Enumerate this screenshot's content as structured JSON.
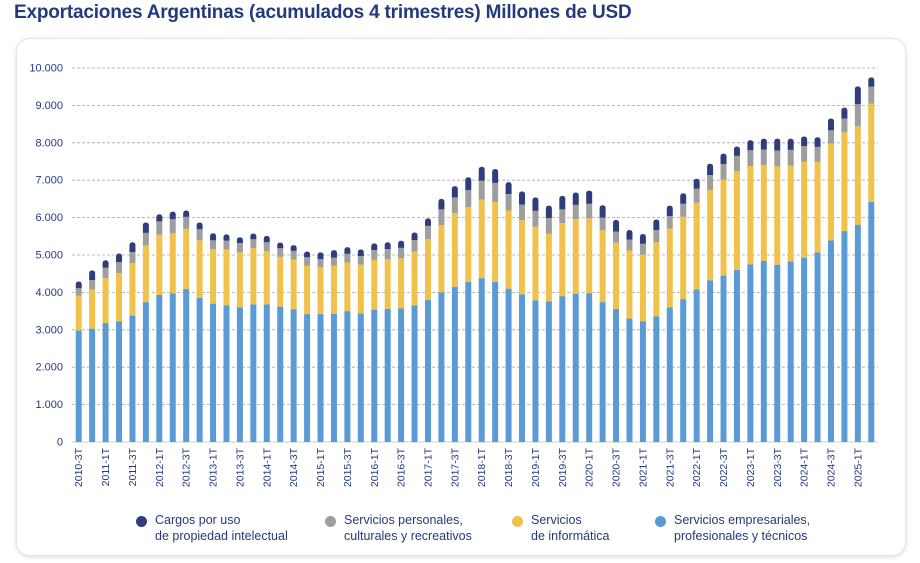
{
  "title": "Exportaciones Argentinas (acumulados 4 trimestres) Millones de USD",
  "colors": {
    "title": "#233a7d",
    "tick": "#233a7d",
    "grid": "#a6a6a6",
    "empresariales": "#5b9bd5",
    "informatica": "#f0c14b",
    "personales": "#9e9e9e",
    "cargos": "#2e3d7c"
  },
  "legend": [
    {
      "key": "cargos",
      "line1": "Cargos por uso",
      "line2": "de propiedad intelectual"
    },
    {
      "key": "personales",
      "line1": "Servicios personales,",
      "line2": "culturales y recreativos"
    },
    {
      "key": "informatica",
      "line1": "Servicios",
      "line2": "de informática"
    },
    {
      "key": "empresariales",
      "line1": "Servicios empresariales,",
      "line2": "profesionales y técnicos"
    }
  ],
  "chart_data": {
    "type": "bar",
    "stacked": true,
    "title": "Exportaciones Argentinas (acumulados 4 trimestres) Millones de USD",
    "xlabel": "",
    "ylabel": "",
    "ylim": [
      0,
      10000
    ],
    "yticks": [
      0,
      1000,
      2000,
      3000,
      4000,
      5000,
      6000,
      7000,
      8000,
      9000,
      10000
    ],
    "ytick_labels": [
      "0",
      "1.000",
      "2.000",
      "3.000",
      "4.000",
      "5.000",
      "6.000",
      "7.000",
      "8.000",
      "9.000",
      "10.000"
    ],
    "categories": [
      "2010-3T",
      "2010-4T",
      "2011-1T",
      "2011-2T",
      "2011-3T",
      "2011-4T",
      "2012-1T",
      "2012-2T",
      "2012-3T",
      "2012-4T",
      "2013-1T",
      "2013-2T",
      "2013-3T",
      "2013-4T",
      "2014-1T",
      "2014-2T",
      "2014-3T",
      "2014-4T",
      "2015-1T",
      "2015-2T",
      "2015-3T",
      "2015-4T",
      "2016-1T",
      "2016-2T",
      "2016-3T",
      "2016-4T",
      "2017-1T",
      "2017-2T",
      "2017-3T",
      "2017-4T",
      "2018-1T",
      "2018-2T",
      "2018-3T",
      "2018-4T",
      "2019-1T",
      "2019-2T",
      "2019-3T",
      "2019-4T",
      "2020-1T",
      "2020-2T",
      "2020-3T",
      "2020-4T",
      "2021-1T",
      "2021-2T",
      "2021-3T",
      "2021-4T",
      "2022-1T",
      "2022-2T",
      "2022-3T",
      "2022-4T",
      "2023-1T",
      "2023-2T",
      "2023-3T",
      "2023-4T",
      "2024-1T",
      "2024-2T",
      "2024-3T",
      "2024-4T",
      "2025-1T",
      "2025-2T"
    ],
    "tick_labels": [
      "2010-3T",
      "2011-1T",
      "2011-3T",
      "2012-1T",
      "2012-3T",
      "2013-1T",
      "2013-3T",
      "2014-1T",
      "2014-3T",
      "2015-1T",
      "2015-3T",
      "2016-1T",
      "2016-3T",
      "2017-1T",
      "2017-3T",
      "2018-1T",
      "2018-3T",
      "2019-1T",
      "2019-3T",
      "2020-1T",
      "2020-3T",
      "2021-1T",
      "2021-3T",
      "2022-1T",
      "2022-3T",
      "2023-1T",
      "2023-3T",
      "2024-1T",
      "2024-3T",
      "2025-1T"
    ],
    "series": [
      {
        "name": "Servicios empresariales, profesionales y técnicos",
        "key": "empresariales",
        "values": [
          2980,
          3030,
          3180,
          3230,
          3380,
          3740,
          3930,
          3980,
          4090,
          3850,
          3700,
          3650,
          3600,
          3680,
          3680,
          3620,
          3550,
          3420,
          3420,
          3430,
          3500,
          3440,
          3540,
          3560,
          3570,
          3650,
          3800,
          4000,
          4150,
          4280,
          4380,
          4280,
          4100,
          3950,
          3790,
          3760,
          3900,
          3960,
          3980,
          3740,
          3560,
          3300,
          3230,
          3360,
          3600,
          3820,
          4080,
          4320,
          4450,
          4600,
          4750,
          4840,
          4740,
          4830,
          4930,
          5070,
          5390,
          5640,
          5810,
          6420
        ]
      },
      {
        "name": "Servicios de informática",
        "key": "informatica",
        "values": [
          930,
          1050,
          1200,
          1290,
          1400,
          1520,
          1610,
          1600,
          1610,
          1540,
          1460,
          1500,
          1470,
          1500,
          1420,
          1330,
          1330,
          1290,
          1250,
          1280,
          1300,
          1300,
          1330,
          1330,
          1340,
          1440,
          1620,
          1800,
          1970,
          2000,
          2100,
          2140,
          2090,
          1980,
          1970,
          1810,
          1950,
          2000,
          2000,
          1920,
          1770,
          1820,
          1780,
          1980,
          2110,
          2200,
          2320,
          2420,
          2560,
          2640,
          2630,
          2560,
          2630,
          2560,
          2560,
          2420,
          2590,
          2640,
          2630,
          2630
        ]
      },
      {
        "name": "Servicios personales, culturales y recreativos",
        "key": "personales",
        "values": [
          200,
          250,
          280,
          290,
          300,
          330,
          360,
          380,
          320,
          300,
          230,
          230,
          250,
          240,
          240,
          230,
          230,
          230,
          220,
          220,
          230,
          230,
          260,
          270,
          280,
          310,
          360,
          420,
          420,
          450,
          510,
          510,
          440,
          420,
          420,
          420,
          370,
          380,
          390,
          340,
          300,
          290,
          290,
          330,
          330,
          350,
          370,
          400,
          420,
          410,
          420,
          420,
          420,
          420,
          420,
          400,
          360,
          370,
          590,
          450
        ]
      },
      {
        "name": "Cargos por uso de propiedad intelectual",
        "key": "cargos",
        "values": [
          180,
          260,
          200,
          230,
          260,
          280,
          190,
          200,
          170,
          180,
          190,
          170,
          150,
          150,
          170,
          150,
          150,
          150,
          180,
          200,
          180,
          180,
          180,
          180,
          190,
          200,
          200,
          280,
          300,
          350,
          370,
          370,
          320,
          350,
          360,
          330,
          360,
          330,
          350,
          330,
          310,
          260,
          260,
          280,
          280,
          280,
          270,
          300,
          280,
          250,
          270,
          290,
          320,
          300,
          260,
          260,
          310,
          290,
          480,
          250
        ]
      }
    ]
  }
}
